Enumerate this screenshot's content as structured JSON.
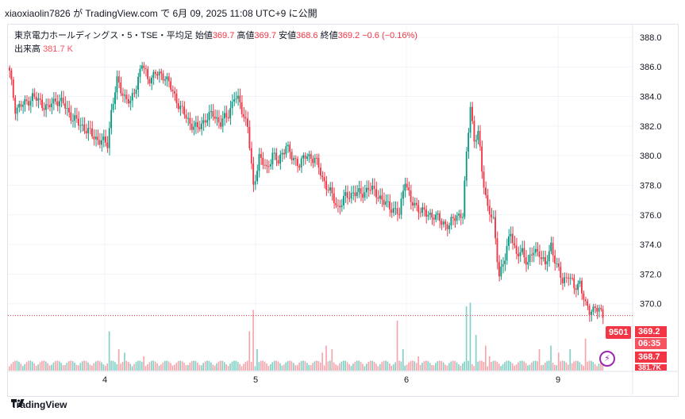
{
  "header": {
    "text": "xiaoxiaolin7826 が TradingView.com で 6月 09, 2025 11:08 UTC+9 に公開"
  },
  "legend": {
    "symbol": "東京電力ホールディングス・5・TSE・平均足",
    "open_label": "始値",
    "open": "369.7",
    "high_label": "高値",
    "high": "369.7",
    "low_label": "安値",
    "low": "368.6",
    "close_label": "終値",
    "close": "369.2",
    "change": "−0.6 (−0.16%)",
    "volume_label": "出来高",
    "volume": "381.7 K"
  },
  "price_tags": {
    "badge": "9501",
    "last": "369.2",
    "countdown": "06:35",
    "low": "368.7",
    "vol": "381.7K"
  },
  "footer": {
    "brand": "TradingView"
  },
  "colors": {
    "up": "#089981",
    "down": "#f23645",
    "up_vol": "#7fcfc4",
    "down_vol": "#f7a3aa",
    "grid": "#f0f3fa"
  },
  "chart_data": {
    "type": "candlestick",
    "y_axis": {
      "min": 368,
      "max": 388.8,
      "ticks": [
        388.0,
        386.0,
        384.0,
        382.0,
        380.0,
        378.0,
        376.0,
        374.0,
        372.0,
        370.0
      ]
    },
    "x_ticks": [
      "4",
      "5",
      "6",
      "9"
    ],
    "last_price": 369.2,
    "price_path": [
      [
        0,
        385.6
      ],
      [
        3,
        383.2
      ],
      [
        8,
        383.5
      ],
      [
        12,
        384.0
      ],
      [
        16,
        383.6
      ],
      [
        20,
        383.2
      ],
      [
        24,
        383.8
      ],
      [
        28,
        383.5
      ],
      [
        33,
        382.5
      ],
      [
        38,
        382.0
      ],
      [
        42,
        381.5
      ],
      [
        47,
        381.0
      ],
      [
        51,
        380.8
      ],
      [
        53,
        383.0
      ],
      [
        56,
        385.0
      ],
      [
        60,
        384.0
      ],
      [
        63,
        383.5
      ],
      [
        66,
        384.8
      ],
      [
        69,
        386.2
      ],
      [
        72,
        385.2
      ],
      [
        76,
        385.5
      ],
      [
        81,
        385.4
      ],
      [
        86,
        384.0
      ],
      [
        90,
        383.0
      ],
      [
        94,
        382.2
      ],
      [
        98,
        381.8
      ],
      [
        102,
        382.5
      ],
      [
        106,
        382.8
      ],
      [
        110,
        382.2
      ],
      [
        114,
        382.8
      ],
      [
        117,
        384.0
      ],
      [
        120,
        383.5
      ],
      [
        124,
        382.0
      ],
      [
        127,
        377.8
      ],
      [
        130,
        380.0
      ],
      [
        134,
        379.0
      ],
      [
        137,
        380.2
      ],
      [
        140,
        379.5
      ],
      [
        144,
        380.8
      ],
      [
        147,
        379.8
      ],
      [
        151,
        379.5
      ],
      [
        155,
        380.0
      ],
      [
        159,
        379.8
      ],
      [
        163,
        378.5
      ],
      [
        167,
        377.5
      ],
      [
        171,
        376.5
      ],
      [
        175,
        377.2
      ],
      [
        179,
        377.5
      ],
      [
        183,
        377.4
      ],
      [
        187,
        377.8
      ],
      [
        191,
        377.5
      ],
      [
        195,
        376.8
      ],
      [
        199,
        376.5
      ],
      [
        203,
        376.0
      ],
      [
        206,
        378.5
      ],
      [
        209,
        376.8
      ],
      [
        213,
        376.5
      ],
      [
        217,
        376.0
      ],
      [
        221,
        376.0
      ],
      [
        225,
        375.5
      ],
      [
        229,
        375.3
      ],
      [
        233,
        376.0
      ],
      [
        236,
        376.0
      ],
      [
        238,
        380.0
      ],
      [
        240,
        383.5
      ],
      [
        242,
        381.0
      ],
      [
        244,
        381.5
      ],
      [
        246,
        379.0
      ],
      [
        249,
        376.5
      ],
      [
        252,
        375.5
      ],
      [
        255,
        372.0
      ],
      [
        258,
        373.0
      ],
      [
        261,
        375.0
      ],
      [
        264,
        373.2
      ],
      [
        267,
        373.5
      ],
      [
        270,
        372.8
      ],
      [
        273,
        373.5
      ],
      [
        276,
        373.5
      ],
      [
        279,
        372.5
      ],
      [
        282,
        374.0
      ],
      [
        285,
        372.5
      ],
      [
        288,
        371.5
      ],
      [
        291,
        372.0
      ],
      [
        294,
        371.0
      ],
      [
        297,
        371.5
      ],
      [
        300,
        369.8
      ],
      [
        302,
        369.5
      ],
      [
        305,
        369.8
      ],
      [
        308,
        369.3
      ],
      [
        309,
        369.2
      ]
    ],
    "volume_spikes": [
      [
        52,
        0.55
      ],
      [
        57,
        0.3
      ],
      [
        60,
        0.25
      ],
      [
        70,
        0.2
      ],
      [
        125,
        0.55
      ],
      [
        127,
        0.85
      ],
      [
        129,
        0.3
      ],
      [
        163,
        0.25
      ],
      [
        165,
        0.35
      ],
      [
        168,
        0.3
      ],
      [
        202,
        0.7
      ],
      [
        205,
        0.3
      ],
      [
        213,
        0.2
      ],
      [
        238,
        0.9
      ],
      [
        240,
        0.95
      ],
      [
        243,
        0.5
      ],
      [
        248,
        0.35
      ],
      [
        250,
        0.2
      ],
      [
        276,
        0.3
      ],
      [
        282,
        0.35
      ],
      [
        286,
        0.25
      ],
      [
        292,
        0.3
      ],
      [
        300,
        0.45
      ]
    ]
  }
}
